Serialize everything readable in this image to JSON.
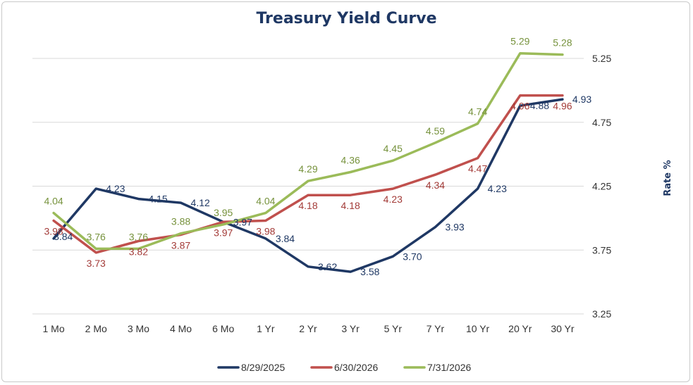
{
  "chart_data": {
    "type": "line",
    "title": "Treasury Yield Curve",
    "xlabel": "",
    "ylabel": "Rate %",
    "ylim": [
      3.25,
      5.25
    ],
    "yticks": [
      "3.25",
      "3.75",
      "4.25",
      "4.75",
      "5.25"
    ],
    "y_axis_side": "right",
    "grid": "horizontal",
    "legend_position": "bottom",
    "categories": [
      "1 Mo",
      "2 Mo",
      "3 Mo",
      "4 Mo",
      "6 Mo",
      "1 Yr",
      "2 Yr",
      "3 Yr",
      "5 Yr",
      "7 Yr",
      "10 Yr",
      "20 Yr",
      "30 Yr"
    ],
    "series": [
      {
        "name": "8/29/2025",
        "color": "#1f3864",
        "values": [
          3.84,
          4.23,
          4.15,
          4.12,
          3.97,
          3.84,
          3.62,
          3.58,
          3.7,
          3.93,
          4.23,
          4.88,
          4.93
        ],
        "labels": [
          "3.84",
          "4.23",
          "4.15",
          "4.12",
          "3.97",
          "3.84",
          "3.62",
          "3.58",
          "3.70",
          "3.93",
          "4.23",
          "4.88",
          "4.93"
        ]
      },
      {
        "name": "6/30/2026",
        "color": "#c0504d",
        "values": [
          3.98,
          3.73,
          3.82,
          3.87,
          3.97,
          3.98,
          4.18,
          4.18,
          4.23,
          4.34,
          4.47,
          4.96,
          4.96
        ],
        "labels": [
          "3.98",
          "3.73",
          "3.82",
          "3.87",
          "3.97",
          "3.98",
          "4.18",
          "4.18",
          "4.23",
          "4.34",
          "4.47",
          "4.96",
          "4.96"
        ]
      },
      {
        "name": "7/31/2026",
        "color": "#9bbb59",
        "values": [
          4.04,
          3.76,
          3.76,
          3.88,
          3.95,
          4.04,
          4.29,
          4.36,
          4.45,
          4.59,
          4.74,
          5.29,
          5.28
        ],
        "labels": [
          "4.04",
          "3.76",
          "3.76",
          "3.88",
          "3.95",
          "4.04",
          "4.29",
          "4.36",
          "4.45",
          "4.59",
          "4.74",
          "5.29",
          "5.28"
        ]
      }
    ]
  }
}
